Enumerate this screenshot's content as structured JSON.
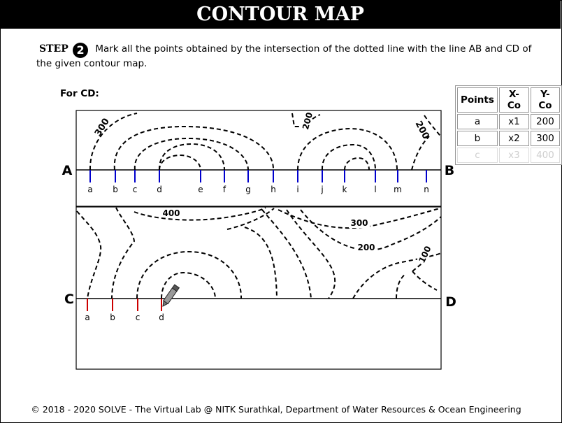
{
  "header": {
    "title": "CONTOUR MAP"
  },
  "instruction": {
    "step_label": "STEP",
    "step_number": "2",
    "line1": "Mark all the points obtained by the intersection of the dotted line with the line AB and CD of",
    "line2": "the given contour map."
  },
  "section_label": "For CD:",
  "points_table": {
    "headers": [
      "Points",
      "X-Co",
      "Y-Co"
    ],
    "rows": [
      {
        "point": "a",
        "x": "x1",
        "y": "200"
      },
      {
        "point": "b",
        "x": "x2",
        "y": "300"
      },
      {
        "point": "c",
        "x": "x3",
        "y": "400"
      }
    ]
  },
  "map": {
    "line_ab": {
      "start_label": "A",
      "end_label": "B"
    },
    "line_cd": {
      "start_label": "C",
      "end_label": "D"
    },
    "ab_points": [
      "a",
      "b",
      "c",
      "d",
      "e",
      "f",
      "g",
      "h",
      "i",
      "j",
      "k",
      "l",
      "m",
      "n"
    ],
    "cd_points": [
      "a",
      "b",
      "c",
      "d"
    ],
    "top_contour_labels": [
      "300",
      "200",
      "200"
    ],
    "bottom_contour_labels": [
      "400",
      "300",
      "200",
      "100"
    ],
    "colors": {
      "ab_marker": "#0000cc",
      "cd_marker": "#cc0000"
    }
  },
  "footer": {
    "copyright": "© 2018 - 2020 SOLVE - The Virtual Lab @ NITK Surathkal, Department of Water Resources & Ocean Engineering"
  }
}
